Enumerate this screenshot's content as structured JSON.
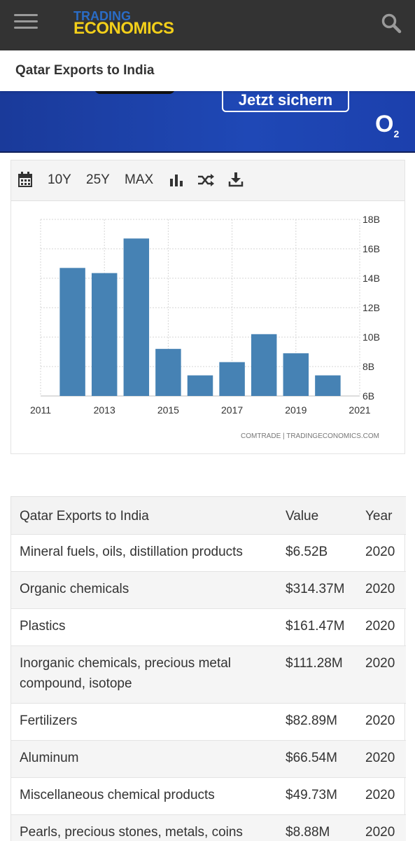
{
  "header": {
    "logo_line1": "TRADING",
    "logo_line2": "ECONOMICS",
    "menu_icon": "hamburger-menu-icon",
    "search_icon": "search-icon"
  },
  "page": {
    "title": "Qatar Exports to India"
  },
  "ad": {
    "cta_label": "Jetzt sichern",
    "brand": "O",
    "brand_sub": "2"
  },
  "toolbar": {
    "calendar_icon": "calendar-icon",
    "ranges": [
      "10Y",
      "25Y",
      "MAX"
    ],
    "chart_type_icon": "bar-chart-icon",
    "compare_icon": "shuffle-icon",
    "download_icon": "download-icon"
  },
  "chart_data": {
    "type": "bar",
    "x": [
      2012,
      2013,
      2014,
      2015,
      2016,
      2017,
      2018,
      2019,
      2020
    ],
    "values": [
      14.7,
      14.35,
      16.7,
      9.2,
      7.4,
      8.3,
      10.2,
      8.9,
      7.4
    ],
    "unit": "B",
    "xlim": [
      2011,
      2021
    ],
    "xticks": [
      "2011",
      "2013",
      "2015",
      "2017",
      "2019",
      "2021"
    ],
    "ylim": [
      6,
      18
    ],
    "yticks": [
      "6B",
      "8B",
      "10B",
      "12B",
      "14B",
      "16B",
      "18B"
    ],
    "y_axis_position": "right",
    "grid": true,
    "bar_color": "#4682b4",
    "source": "COMTRADE | TRADINGECONOMICS.COM"
  },
  "table": {
    "headers": [
      "Qatar Exports to India",
      "Value",
      "Year"
    ],
    "rows": [
      {
        "name": "Mineral fuels, oils, distillation products",
        "value": "$6.52B",
        "year": "2020"
      },
      {
        "name": "Organic chemicals",
        "value": "$314.37M",
        "year": "2020"
      },
      {
        "name": "Plastics",
        "value": "$161.47M",
        "year": "2020"
      },
      {
        "name": "Inorganic chemicals, precious metal compound, isotope",
        "value": "$111.28M",
        "year": "2020"
      },
      {
        "name": "Fertilizers",
        "value": "$82.89M",
        "year": "2020"
      },
      {
        "name": "Aluminum",
        "value": "$66.54M",
        "year": "2020"
      },
      {
        "name": "Miscellaneous chemical products",
        "value": "$49.73M",
        "year": "2020"
      },
      {
        "name": "Pearls, precious stones, metals, coins",
        "value": "$8.88M",
        "year": "2020"
      }
    ]
  }
}
